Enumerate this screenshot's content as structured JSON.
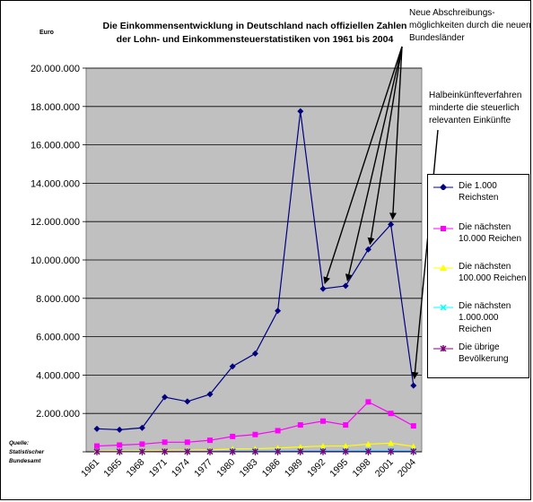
{
  "chart_data": {
    "type": "line",
    "title": "Die Einkommensentwicklung in Deutschland nach offiziellen Zahlen der Lohn- und Einkommensteuerstatistiken von 1961 bis 2004",
    "title_lines": [
      "Die Einkommensentwicklung in Deutschland nach offiziellen Zahlen",
      "der Lohn- und Einkommensteuerstatistiken von 1961 bis 2004"
    ],
    "ylabel": "Euro",
    "xlabel": "",
    "ylim": [
      0,
      20000000
    ],
    "ytick_labels": [
      "",
      "2.000.000",
      "4.000.000",
      "6.000.000",
      "8.000.000",
      "10.000.000",
      "12.000.000",
      "14.000.000",
      "16.000.000",
      "18.000.000",
      "20.000.000"
    ],
    "categories": [
      "1961",
      "1965",
      "1968",
      "1971",
      "1974",
      "1977",
      "1980",
      "1983",
      "1986",
      "1989",
      "1992",
      "1995",
      "1998",
      "2001",
      "2004"
    ],
    "grid": true,
    "legend_position": "right",
    "series": [
      {
        "name": "Die 1.000 Reichsten",
        "color": "#000080",
        "marker": "diamond",
        "values": [
          1200000,
          1150000,
          1250000,
          2850000,
          2620000,
          3000000,
          4450000,
          5120000,
          7350000,
          17750000,
          8500000,
          8650000,
          10550000,
          11850000,
          3450000
        ]
      },
      {
        "name": "Die nächsten 10.000 Reichen",
        "color": "#ff00ff",
        "marker": "square",
        "values": [
          300000,
          350000,
          400000,
          500000,
          500000,
          600000,
          800000,
          900000,
          1100000,
          1400000,
          1600000,
          1400000,
          2600000,
          2000000,
          1350000
        ]
      },
      {
        "name": "Die nächsten 100.000 Reichen",
        "color": "#ffff00",
        "marker": "triangle",
        "values": [
          50000,
          60000,
          70000,
          80000,
          90000,
          100000,
          150000,
          160000,
          200000,
          250000,
          300000,
          300000,
          400000,
          450000,
          280000
        ]
      },
      {
        "name": "Die nächsten 1.000.000 Reichen",
        "color": "#00ffff",
        "marker": "x",
        "values": [
          20000,
          22000,
          24000,
          26000,
          28000,
          30000,
          40000,
          40000,
          45000,
          55000,
          60000,
          60000,
          70000,
          70000,
          60000
        ]
      },
      {
        "name": "Die übrige Bevölkerung",
        "color": "#800080",
        "marker": "star",
        "values": [
          8000,
          9000,
          9000,
          10000,
          11000,
          12000,
          14000,
          14000,
          15000,
          16000,
          18000,
          18000,
          19000,
          19000,
          18000
        ]
      }
    ],
    "legend_lines": [
      [
        "Die 1.000",
        "Reichsten"
      ],
      [
        "Die nächsten",
        "10.000 Reichen"
      ],
      [
        "Die nächsten",
        "100.000 Reichen"
      ],
      [
        "Die nächsten",
        "1.000.000",
        "Reichen"
      ],
      [
        "Die übrige",
        "Bevölkerung"
      ]
    ],
    "annotations": [
      {
        "text": "Neue Abschreibungs-möglichkeiten durch die neuen Bundesländer",
        "lines": [
          "Neue Abschreibungs-",
          "möglichkeiten  durch die neuen",
          "Bundesländer"
        ],
        "points_to": [
          "1992",
          "1995",
          "1998",
          "2001"
        ]
      },
      {
        "text": "Halbeinkünfteverfahren minderte die steuerlich relevanten Einkünfte",
        "lines": [
          "Halbeinkünfteverfahren",
          "minderte die steuerlich",
          "relevanten Einkünfte"
        ],
        "points_to": [
          "2004"
        ]
      }
    ],
    "source_note": [
      "Quelle:",
      "Statistischer",
      "Bundesamt"
    ]
  }
}
